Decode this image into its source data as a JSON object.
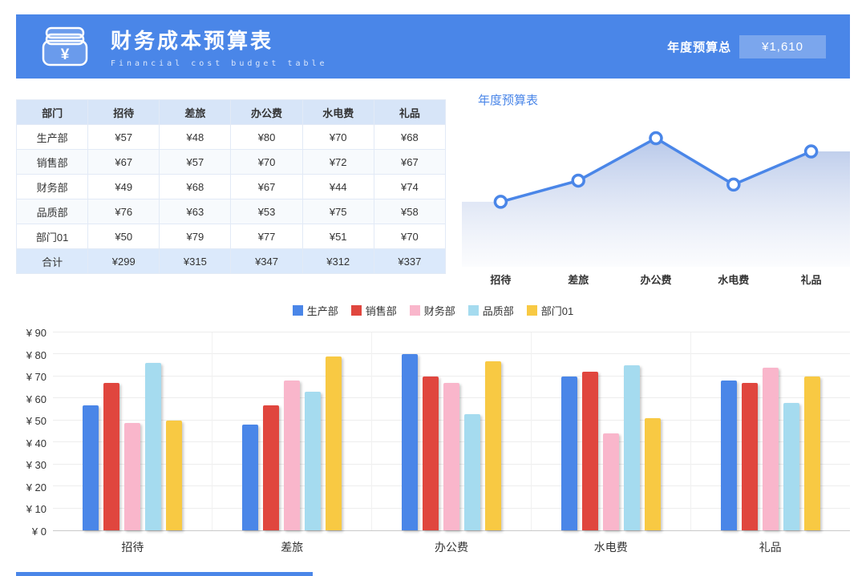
{
  "header": {
    "title": "财务成本预算表",
    "subtitle": "Financial cost budget table",
    "total_label": "年度预算总",
    "total_value": "¥1,610"
  },
  "table": {
    "columns": [
      "部门",
      "招待",
      "差旅",
      "办公费",
      "水电费",
      "礼品"
    ],
    "rows": [
      {
        "name": "生产部",
        "values": [
          "¥57",
          "¥48",
          "¥80",
          "¥70",
          "¥68"
        ]
      },
      {
        "name": "销售部",
        "values": [
          "¥67",
          "¥57",
          "¥70",
          "¥72",
          "¥67"
        ]
      },
      {
        "name": "财务部",
        "values": [
          "¥49",
          "¥68",
          "¥67",
          "¥44",
          "¥74"
        ]
      },
      {
        "name": "品质部",
        "values": [
          "¥76",
          "¥63",
          "¥53",
          "¥75",
          "¥58"
        ]
      },
      {
        "name": "部门01",
        "values": [
          "¥50",
          "¥79",
          "¥77",
          "¥51",
          "¥70"
        ]
      }
    ],
    "total_row": {
      "name": "合计",
      "values": [
        "¥299",
        "¥315",
        "¥347",
        "¥312",
        "¥337"
      ]
    }
  },
  "chart_data": [
    {
      "type": "line",
      "title": "年度预算表",
      "categories": [
        "招待",
        "差旅",
        "办公费",
        "水电费",
        "礼品"
      ],
      "values": [
        299,
        315,
        347,
        312,
        337
      ],
      "line_color": "#4a86e8",
      "marker": "circle-open",
      "area_fill": true,
      "yrange_hint": [
        250,
        360
      ],
      "legend_position": "none"
    },
    {
      "type": "bar",
      "categories": [
        "招待",
        "差旅",
        "办公费",
        "水电费",
        "礼品"
      ],
      "series": [
        {
          "name": "生产部",
          "color": "#4a86e8",
          "values": [
            57,
            48,
            80,
            70,
            68
          ]
        },
        {
          "name": "销售部",
          "color": "#e0463e",
          "values": [
            67,
            57,
            70,
            72,
            67
          ]
        },
        {
          "name": "财务部",
          "color": "#f9b6cb",
          "values": [
            49,
            68,
            67,
            44,
            74
          ]
        },
        {
          "name": "品质部",
          "color": "#a5dbef",
          "values": [
            76,
            63,
            53,
            75,
            58
          ]
        },
        {
          "name": "部门01",
          "color": "#f8c943",
          "values": [
            50,
            79,
            77,
            51,
            70
          ]
        }
      ],
      "ylim": [
        0,
        90
      ],
      "ytick_step": 10,
      "ytick_prefix": "¥",
      "grid": true,
      "legend_position": "top"
    }
  ],
  "colors": {
    "header_bg": "#4a86e8",
    "badge_bg": "#7ba6ed",
    "table_header_bg": "#d7e5f8",
    "table_total_bg": "#dbe9fb",
    "accent": "#4a86e8"
  }
}
